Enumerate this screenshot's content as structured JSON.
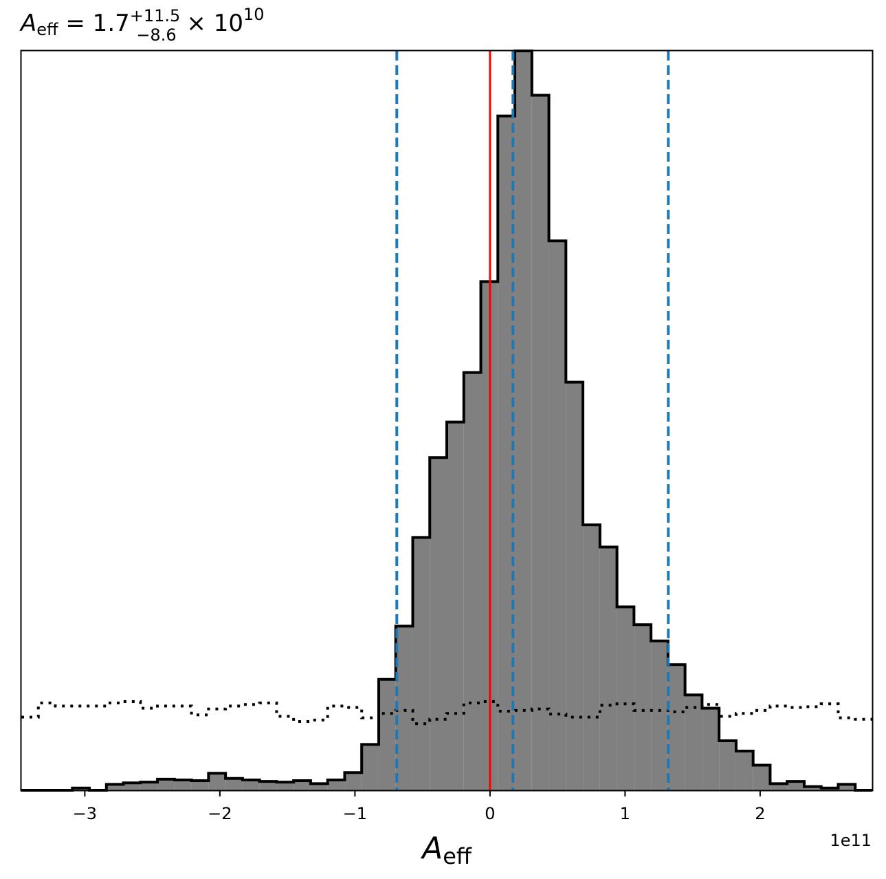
{
  "chart_data": {
    "type": "histogram",
    "title": {
      "symbol": "A",
      "symbol_sub": "eff",
      "equals": " = 1.7",
      "err_plus": "+11.5",
      "err_minus": "−8.6",
      "times": " × 10",
      "exponent": "10"
    },
    "xlabel": {
      "symbol": "A",
      "sub": "eff"
    },
    "ylabel": "",
    "offset_text": "1e11",
    "x_scale_factor": 100000000000.0,
    "xlim": [
      -3.47,
      2.83
    ],
    "ylim": [
      0,
      1.0
    ],
    "xticks": [
      -3,
      -2,
      -1,
      0,
      1,
      2
    ],
    "xtick_labels": [
      "−3",
      "−2",
      "−1",
      "0",
      "1",
      "2"
    ],
    "y_axis_ticks_shown": false,
    "bin_edges": [
      -3.47,
      -3.344,
      -3.218,
      -3.092,
      -2.966,
      -2.84,
      -2.714,
      -2.588,
      -2.462,
      -2.336,
      -2.21,
      -2.084,
      -1.958,
      -1.832,
      -1.706,
      -1.58,
      -1.454,
      -1.328,
      -1.202,
      -1.076,
      -0.95,
      -0.824,
      -0.698,
      -0.572,
      -0.446,
      -0.32,
      -0.194,
      -0.068,
      0.058,
      0.184,
      0.31,
      0.436,
      0.562,
      0.688,
      0.814,
      0.94,
      1.066,
      1.192,
      1.318,
      1.444,
      1.57,
      1.696,
      1.822,
      1.948,
      2.074,
      2.2,
      2.326,
      2.452,
      2.578,
      2.704,
      2.83
    ],
    "posterior_counts": [
      0.0,
      0.0,
      0.0,
      0.003,
      0.0,
      0.008,
      0.01,
      0.011,
      0.015,
      0.014,
      0.013,
      0.023,
      0.016,
      0.014,
      0.012,
      0.011,
      0.013,
      0.009,
      0.014,
      0.024,
      0.062,
      0.15,
      0.222,
      0.342,
      0.45,
      0.498,
      0.565,
      0.688,
      0.912,
      1.0,
      0.94,
      0.743,
      0.552,
      0.359,
      0.329,
      0.248,
      0.224,
      0.202,
      0.17,
      0.129,
      0.111,
      0.067,
      0.053,
      0.034,
      0.009,
      0.012,
      0.005,
      0.003,
      0.008,
      0.0
    ],
    "prior_counts": [
      0.099,
      0.118,
      0.114,
      0.114,
      0.114,
      0.118,
      0.12,
      0.111,
      0.114,
      0.114,
      0.102,
      0.11,
      0.114,
      0.116,
      0.118,
      0.1,
      0.093,
      0.095,
      0.114,
      0.112,
      0.098,
      0.104,
      0.108,
      0.09,
      0.096,
      0.104,
      0.118,
      0.12,
      0.107,
      0.108,
      0.11,
      0.103,
      0.099,
      0.099,
      0.115,
      0.117,
      0.108,
      0.108,
      0.106,
      0.112,
      0.116,
      0.1,
      0.104,
      0.108,
      0.114,
      0.112,
      0.113,
      0.117,
      0.098,
      0.096
    ],
    "vlines": [
      {
        "name": "lower",
        "x": -0.69,
        "style": "dashed",
        "color": "#1f77b4"
      },
      {
        "name": "median",
        "x": 0.17,
        "style": "dashed",
        "color": "#1f77b4"
      },
      {
        "name": "upper",
        "x": 1.32,
        "style": "dashed",
        "color": "#1f77b4"
      },
      {
        "name": "truth",
        "x": 0.0,
        "style": "solid",
        "color": "#ff0000"
      }
    ],
    "colors": {
      "fill": "#808080",
      "outline": "#000000",
      "prior": "#000000"
    },
    "grid": false
  }
}
